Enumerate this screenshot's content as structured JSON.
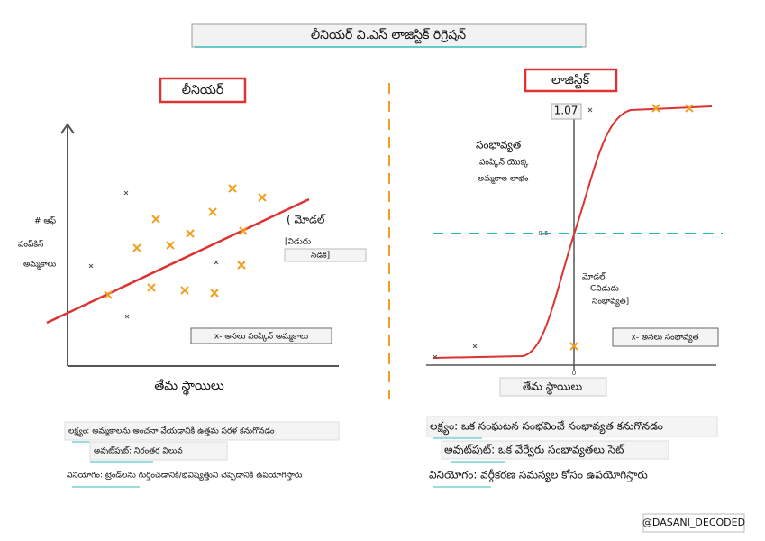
{
  "title": "లీనియర్ వి.ఎస్ లాజిస్టిక్ రిగ్రెషన్",
  "linear": {
    "heading": "లీనియర్",
    "y_label": [
      "# ఆఫ్",
      "పంప్‌కిన్",
      "అమ్మకాలు"
    ],
    "x_label": "తేమ స్థాయిలు",
    "model_label": [
      "( మోడల్",
      "[విడుదు",
      "నడక]"
    ],
    "legend": "x- అసలు పంప్కిన్ అమ్మకాలు"
  },
  "logistic": {
    "heading": "లాజిస్టిక్",
    "tick_top": "1.07",
    "tick_mid": "0.5",
    "tick_origin": "0",
    "y_label": [
      "సంభావ్యత",
      "పంప్కిన్ యొక్క",
      "అమ్మకాల లాభం"
    ],
    "model_label": [
      "మోడల్",
      "Cవిడుదు",
      "సంభావ్యత]"
    ],
    "legend": "x- అసలు సంభావ్యత",
    "x_label": "తేమ స్థాయిలు"
  },
  "linear_notes": [
    "లక్ష్యం: అమ్మకాలను అంచనా వేయడానికి ఉత్తమ సరళ కనుగొనడం",
    "అవుట్‌పుట్: నిరంతర విలువ",
    "వినియోగం: ట్రెండ్‌లను గుర్తించడానికి/భవిష్యత్తుని చెప్పడానికి ఉపయోగిస్తారు"
  ],
  "logistic_notes": [
    "లక్ష్యం: ఒక సంఘటన సంభవించే సంభావ్యత కనుగొనడం",
    "అవుట్‌పుట్: ఒక వేర్వేరు సంభావ్యతలు సెట్",
    "వినియోగం: వర్గీకరణ సమస్యల కోసం ఉపయోగిస్తారు"
  ],
  "footer": "@DASANI_DECODED"
}
